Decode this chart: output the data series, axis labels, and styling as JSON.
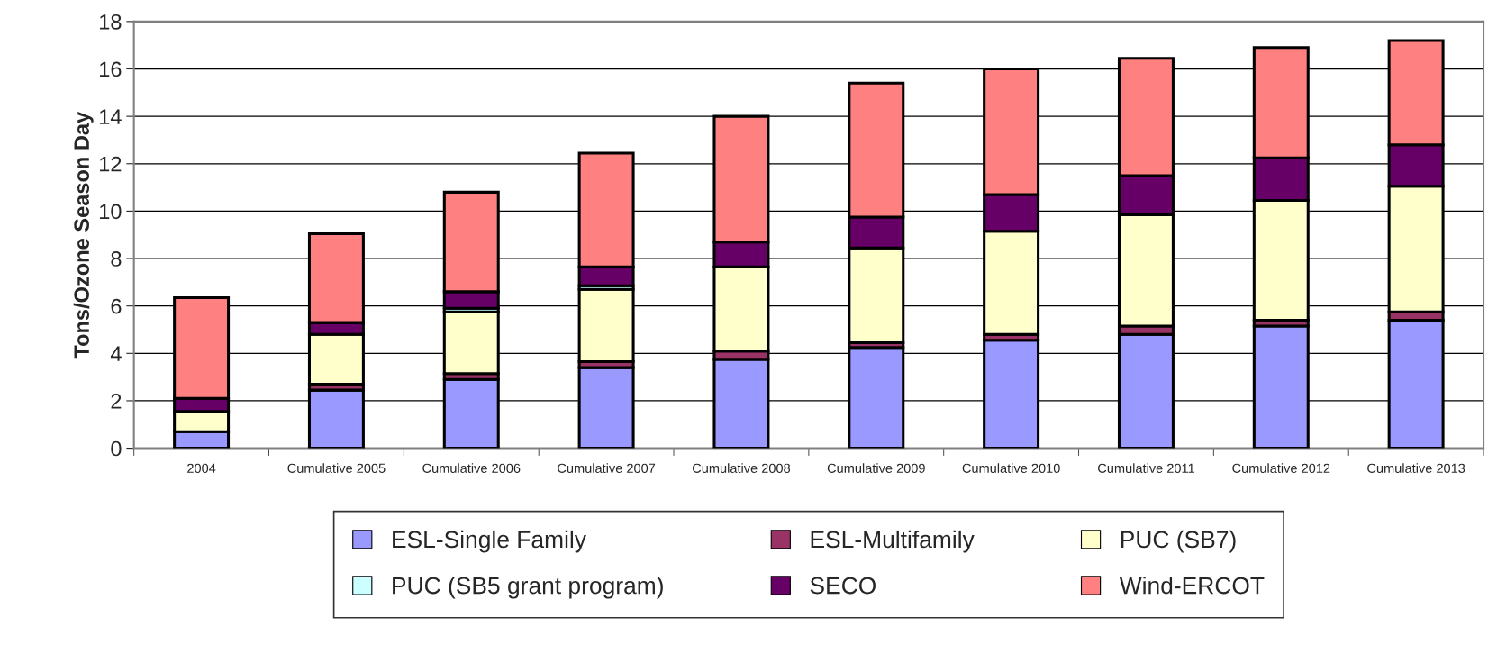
{
  "chart_data": {
    "type": "bar",
    "stacked": true,
    "ylabel": "Tons/Ozone Season Day",
    "categories": [
      "2004",
      "Cumulative 2005",
      "Cumulative 2006",
      "Cumulative 2007",
      "Cumulative 2008",
      "Cumulative 2009",
      "Cumulative 2010",
      "Cumulative 2011",
      "Cumulative 2012",
      "Cumulative 2013"
    ],
    "series": [
      {
        "name": "ESL-Single Family",
        "color": "#9999ff",
        "values": [
          0.7,
          2.45,
          2.9,
          3.4,
          3.75,
          4.25,
          4.55,
          4.8,
          5.15,
          5.4
        ]
      },
      {
        "name": "ESL-Multifamily",
        "color": "#993366",
        "values": [
          null,
          0.25,
          0.25,
          0.25,
          0.35,
          0.2,
          0.25,
          0.35,
          0.25,
          0.35
        ]
      },
      {
        "name": "PUC (SB7)",
        "color": "#ffffcc",
        "values": [
          0.85,
          2.1,
          2.6,
          3.05,
          3.55,
          4.0,
          4.35,
          4.7,
          5.05,
          5.3
        ]
      },
      {
        "name": "PUC (SB5 grant program)",
        "color": "#ccffff",
        "values": [
          null,
          null,
          0.15,
          0.15,
          null,
          null,
          null,
          null,
          null,
          null
        ]
      },
      {
        "name": "SECO",
        "color": "#660066",
        "values": [
          0.55,
          0.5,
          0.7,
          0.8,
          1.05,
          1.3,
          1.55,
          1.65,
          1.8,
          1.75
        ]
      },
      {
        "name": "Wind-ERCOT",
        "color": "#ff8080",
        "values": [
          4.25,
          3.75,
          4.2,
          4.8,
          5.3,
          5.65,
          5.3,
          4.95,
          4.65,
          4.4
        ]
      }
    ],
    "ylim": [
      0,
      18
    ],
    "yticks": [
      0,
      2,
      4,
      6,
      8,
      10,
      12,
      14,
      16,
      18
    ],
    "grid": "y",
    "legend": "bottom"
  }
}
